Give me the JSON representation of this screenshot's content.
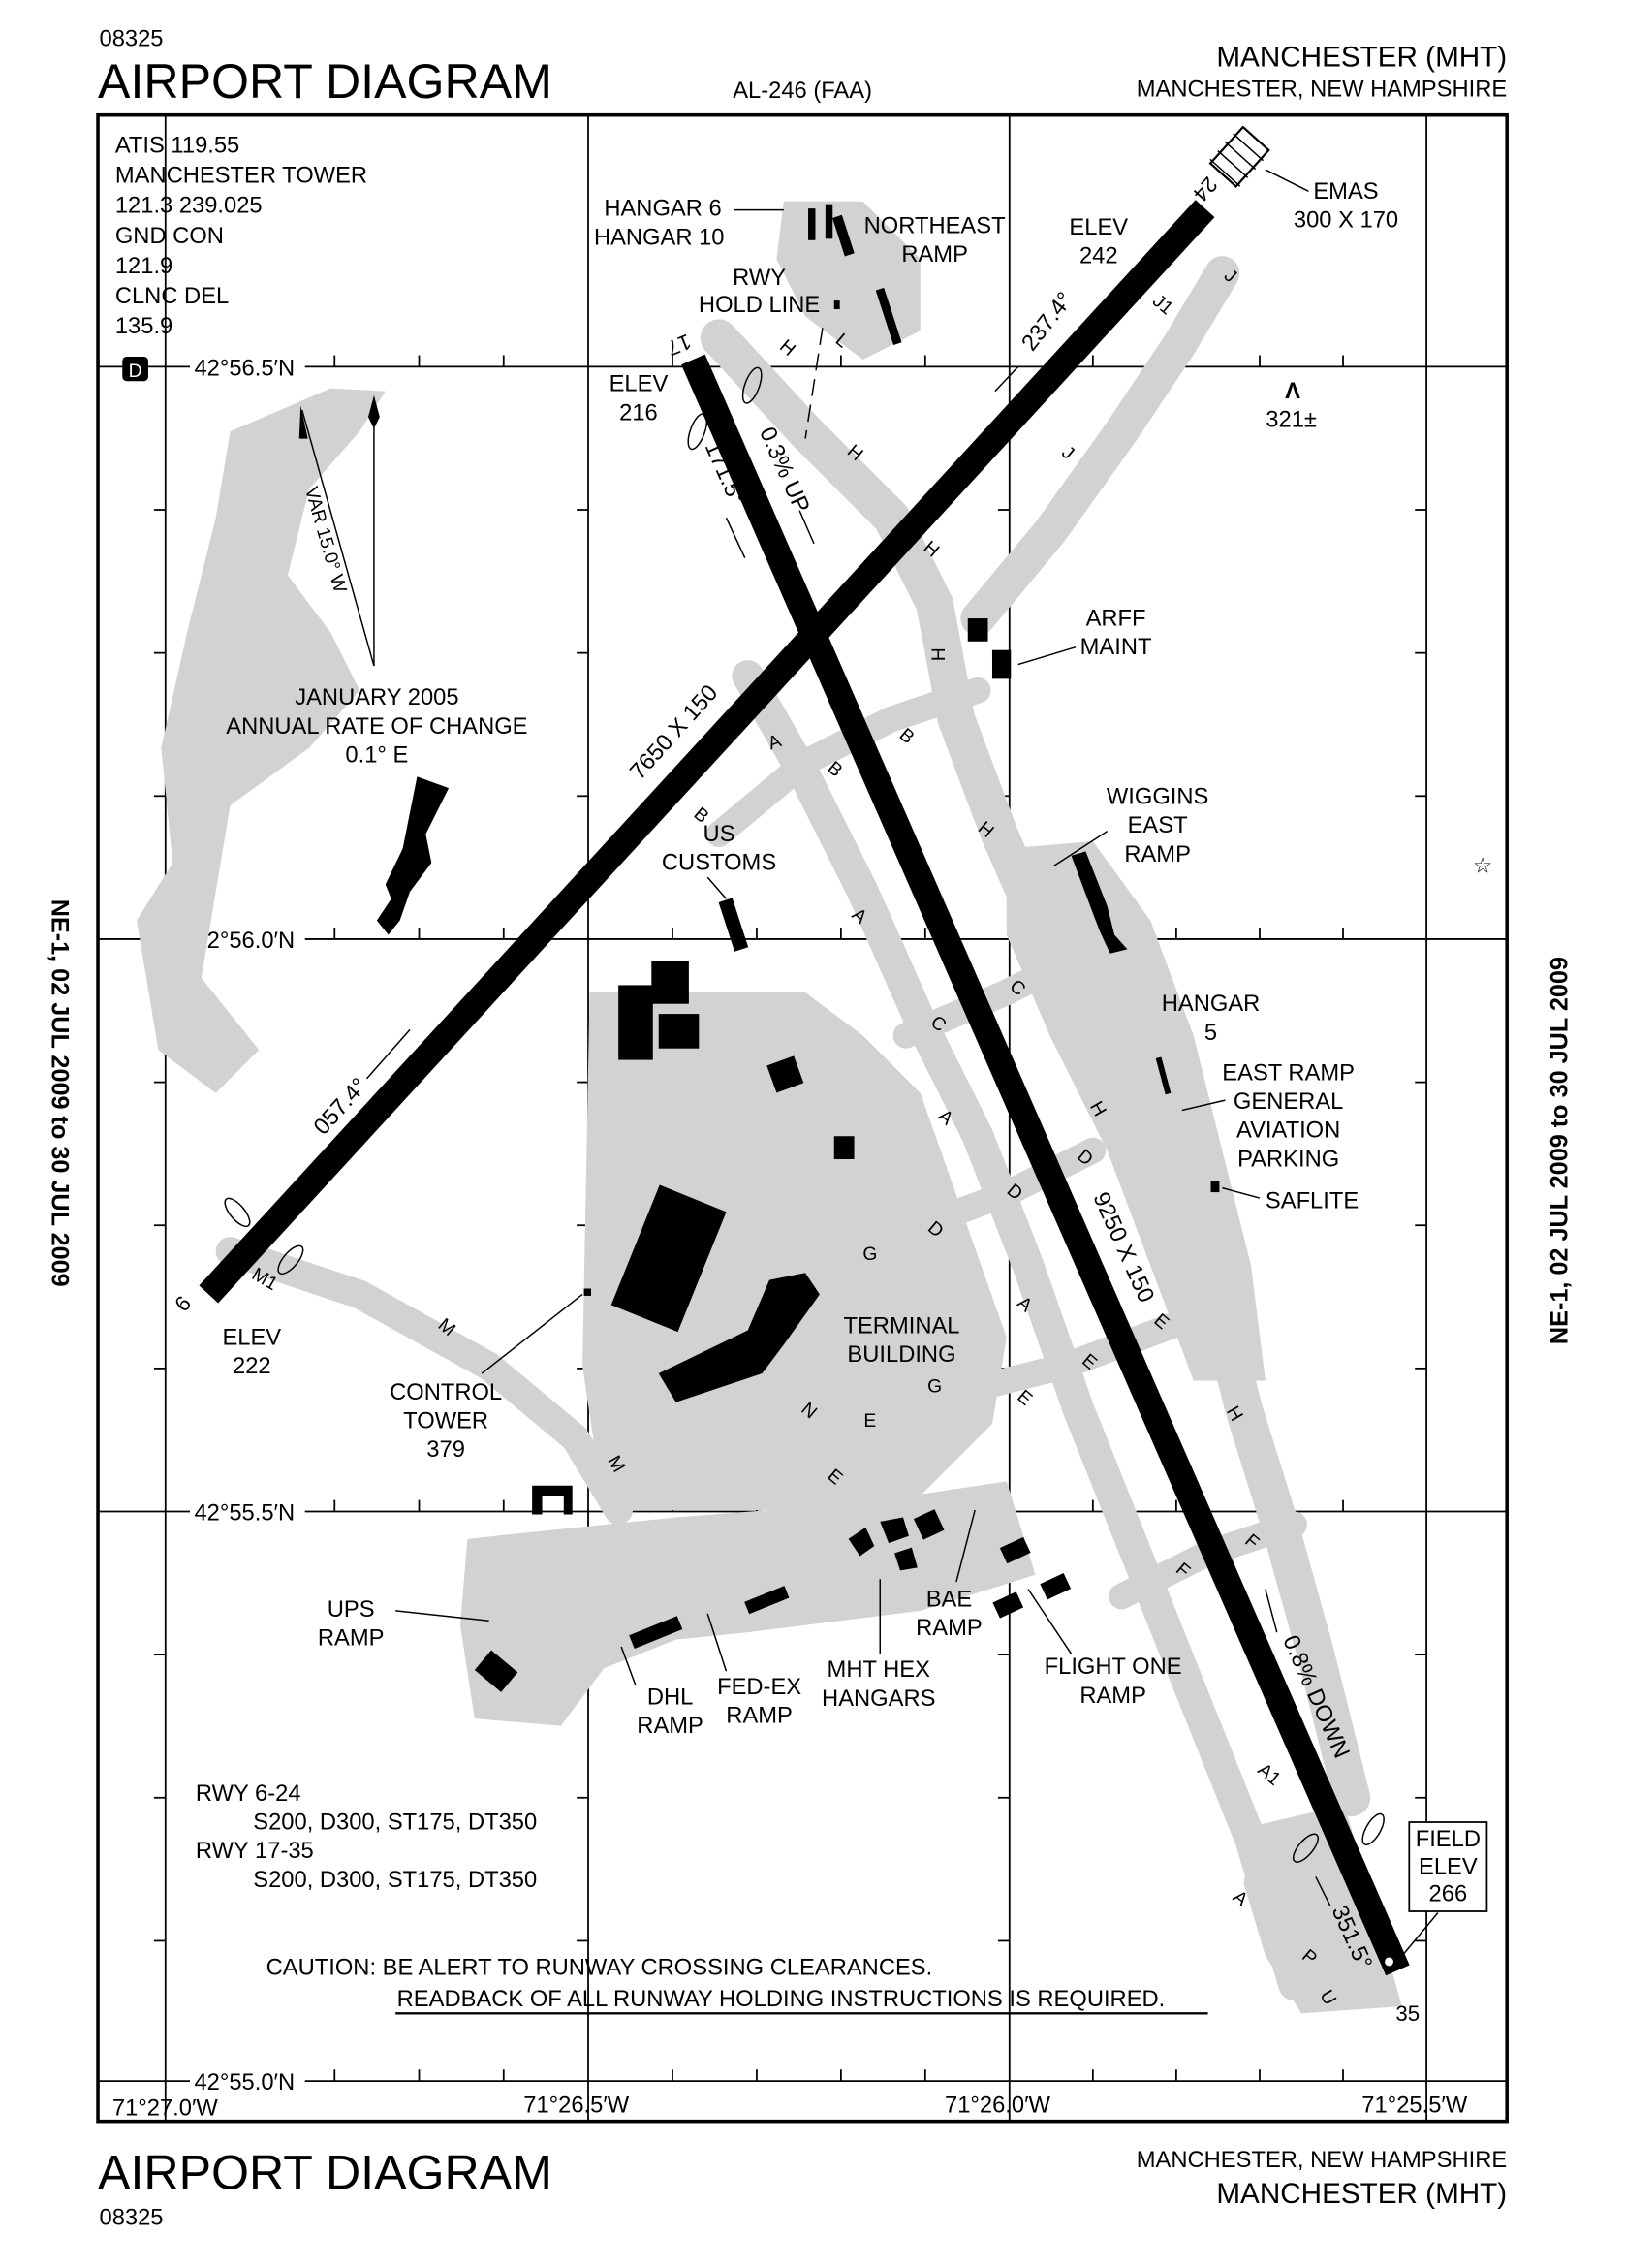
{
  "header": {
    "chart_number": "08325",
    "title": "AIRPORT DIAGRAM",
    "chart_id": "AL-246 (FAA)",
    "airport": "MANCHESTER (MHT)",
    "city_state": "MANCHESTER, NEW HAMPSHIRE"
  },
  "footer": {
    "title": "AIRPORT DIAGRAM",
    "chart_number": "08325",
    "city_state": "MANCHESTER, NEW HAMPSHIRE",
    "airport": "MANCHESTER (MHT)"
  },
  "side_margin": {
    "left": "NE-1, 02 JUL 2009 to 30 JUL 2009",
    "right": "NE-1, 02 JUL 2009 to 30 JUL 2009"
  },
  "frequencies": [
    "ATIS 119.55",
    "MANCHESTER TOWER",
    "121.3  239.025",
    "GND CON",
    "121.9",
    "CLNC DEL",
    "135.9"
  ],
  "d_symbol": "D",
  "latitudes": [
    "42°56.5′N",
    "42°56.0′N",
    "42°55.5′N",
    "42°55.0′N"
  ],
  "longitudes": [
    "71°27.0′W",
    "71°26.5′W",
    "71°26.0′W",
    "71°25.5′W"
  ],
  "magnetic": {
    "variation": "VAR 15.0° W",
    "epoch": [
      "JANUARY 2005",
      "ANNUAL RATE OF CHANGE",
      "0.1° E"
    ]
  },
  "runways": {
    "rwy_6_24": {
      "dims": "7650 X 150",
      "hdg_6": "057.4°",
      "hdg_24": "237.4°",
      "end_6": "6",
      "end_24": "24",
      "elev_6": [
        "ELEV",
        "222"
      ],
      "elev_24": [
        "ELEV",
        "242"
      ]
    },
    "rwy_17_35": {
      "dims": "9250 X 150",
      "hdg_17": "171.5°",
      "hdg_35": "351.5°",
      "end_17": "17",
      "end_35": "35",
      "elev_17": [
        "ELEV",
        "216"
      ],
      "slope_up": "0.3% UP",
      "slope_down": "0.8% DOWN"
    }
  },
  "emas": [
    "EMAS",
    "300 X 170"
  ],
  "obstacle": {
    "symbol": "Λ",
    "height": "321±"
  },
  "field_elev": [
    "FIELD",
    "ELEV",
    "266"
  ],
  "labels": {
    "hangar6": "HANGAR 6",
    "hangar10": "HANGAR 10",
    "northeast_ramp": [
      "NORTHEAST",
      "RAMP"
    ],
    "rwy_hold_line": [
      "RWY",
      "HOLD LINE"
    ],
    "arff_maint": [
      "ARFF",
      "MAINT"
    ],
    "us_customs": [
      "US",
      "CUSTOMS"
    ],
    "wiggins": [
      "WIGGINS",
      "EAST",
      "RAMP"
    ],
    "hangar5": [
      "HANGAR",
      "5"
    ],
    "east_ramp": [
      "EAST RAMP",
      "GENERAL",
      "AVIATION",
      "PARKING"
    ],
    "saflite": "SAFLITE",
    "terminal": [
      "TERMINAL",
      "BUILDING"
    ],
    "control_tower": [
      "CONTROL",
      "TOWER",
      "379"
    ],
    "ups_ramp": [
      "UPS",
      "RAMP"
    ],
    "dhl_ramp": [
      "DHL",
      "RAMP"
    ],
    "fedex_ramp": [
      "FED-EX",
      "RAMP"
    ],
    "mht_hex": [
      "MHT HEX",
      "HANGARS"
    ],
    "bae_ramp": [
      "BAE",
      "RAMP"
    ],
    "flight_one": [
      "FLIGHT ONE",
      "RAMP"
    ]
  },
  "taxiways": [
    "H",
    "H",
    "H",
    "H",
    "H",
    "H",
    "H",
    "J",
    "J1",
    "J",
    "L",
    "A",
    "B",
    "B",
    "B",
    "A",
    "A",
    "A",
    "C",
    "C",
    "D",
    "D",
    "D",
    "E",
    "E",
    "E",
    "E",
    "E",
    "F",
    "F",
    "G",
    "G",
    "M",
    "M",
    "M1",
    "N",
    "A1",
    "A",
    "P",
    "U"
  ],
  "weight_bearing": [
    "RWY 6-24",
    "S200, D300, ST175, DT350",
    "RWY 17-35",
    "S200, D300, ST175, DT350"
  ],
  "caution": [
    "CAUTION: BE ALERT TO RUNWAY CROSSING CLEARANCES.",
    "READBACK OF ALL RUNWAY HOLDING INSTRUCTIONS IS REQUIRED."
  ],
  "colors": {
    "ink": "#000000",
    "pavement": "#d2d2d2",
    "background": "#ffffff"
  }
}
